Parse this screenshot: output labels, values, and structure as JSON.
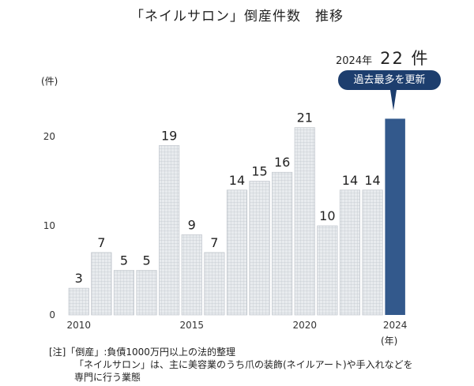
{
  "title": "「ネイルサロン」倒産件数　推移",
  "highlight": {
    "year_label": "2024年",
    "value_label": "22 件"
  },
  "badge": "過去最多を更新",
  "y_unit": "(件)",
  "x_unit": "(年)",
  "colors": {
    "bar": "#e5e8eb",
    "bar_grid": "#c3c8ce",
    "highlight_bar": "#33598c",
    "badge_bg": "#1d3e6e"
  },
  "chart_data": {
    "type": "bar",
    "title": "「ネイルサロン」倒産件数　推移",
    "ylabel": "(件)",
    "xlabel": "(年)",
    "categories": [
      "2010",
      "2011",
      "2012",
      "2013",
      "2014",
      "2015",
      "2016",
      "2017",
      "2018",
      "2019",
      "2020",
      "2021",
      "2022",
      "2023",
      "2024"
    ],
    "values": [
      3,
      7,
      5,
      5,
      19,
      9,
      7,
      14,
      15,
      16,
      21,
      10,
      14,
      14,
      22
    ],
    "value_labels": [
      "3",
      "7",
      "5",
      "5",
      "19",
      "9",
      "7",
      "14",
      "15",
      "16",
      "21",
      "10",
      "14",
      "14",
      ""
    ],
    "x_tick_labels": [
      "2010",
      "2015",
      "2020",
      "2024"
    ],
    "y_ticks": [
      "0",
      "10",
      "20"
    ],
    "ylim": [
      0,
      25
    ],
    "highlight_index": 14
  },
  "note": {
    "line1": "[注]「倒産」:負債1000万円以上の法的整理",
    "line2": "「ネイルサロン」は、主に美容業のうち爪の装飾(ネイルアート)や手入れなどを",
    "line3": "専門に行う業態"
  }
}
